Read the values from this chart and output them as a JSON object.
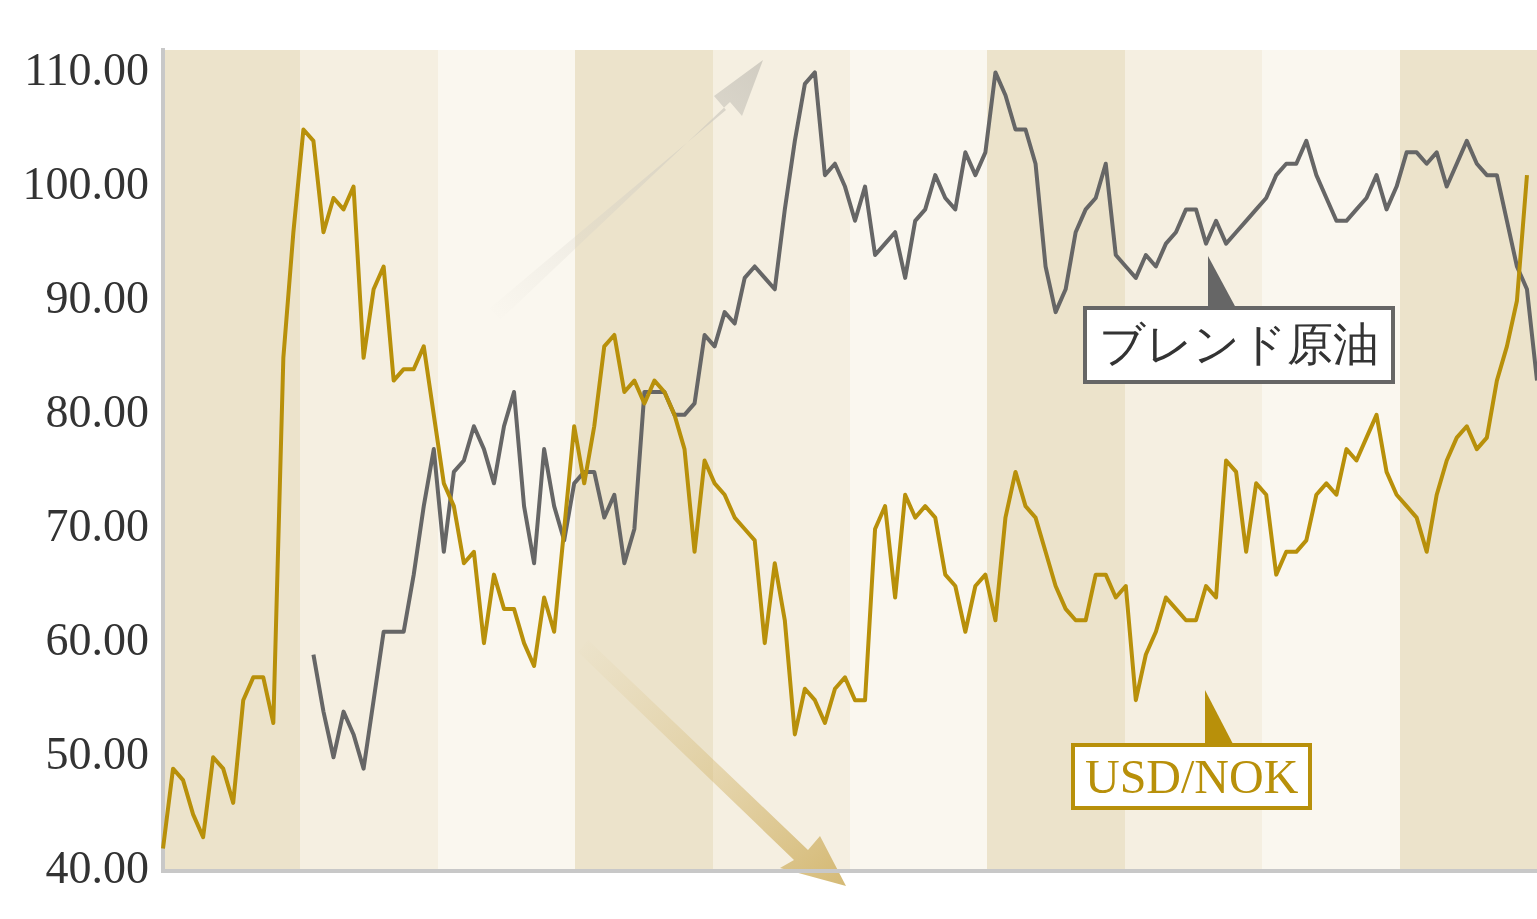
{
  "chart_data": {
    "type": "line",
    "categories": [
      null,
      null,
      null,
      null,
      null,
      null,
      null,
      null,
      null,
      null,
      null,
      null,
      null,
      null,
      null,
      null,
      null,
      null,
      null,
      null,
      null,
      null,
      null,
      null,
      null,
      null,
      null,
      null,
      null,
      null,
      null,
      null,
      null,
      null,
      null,
      null,
      null,
      null,
      null,
      null,
      null,
      null,
      null,
      null,
      null,
      null,
      null,
      null,
      null,
      null,
      null,
      null,
      null,
      null,
      null,
      null,
      null,
      null,
      null,
      null,
      null,
      null,
      null,
      null,
      null,
      null,
      null,
      null,
      null,
      null,
      null,
      null,
      null,
      null,
      null,
      null,
      null,
      null,
      null,
      null,
      null,
      null,
      null,
      null,
      null,
      null,
      null,
      null,
      null,
      null,
      null,
      null,
      null,
      null,
      null,
      null,
      null,
      null,
      null,
      null,
      null,
      null,
      null,
      null,
      null,
      null,
      null,
      null,
      null,
      null,
      null,
      null,
      null,
      null,
      null,
      null,
      null,
      null,
      null,
      null,
      null,
      null,
      null,
      null,
      null,
      null,
      null,
      null,
      null,
      null,
      null,
      null,
      null,
      null,
      null,
      null,
      null,
      null
    ],
    "series": [
      {
        "name": "USD/NOK",
        "color": "#b8900a",
        "values": [
          42,
          49,
          48,
          45,
          43,
          50,
          49,
          46,
          55,
          57,
          57,
          53,
          85,
          96,
          105,
          104,
          96,
          99,
          98,
          100,
          85,
          91,
          93,
          83,
          84,
          84,
          86,
          80,
          74,
          72,
          67,
          68,
          60,
          66,
          63,
          63,
          60,
          58,
          64,
          61,
          70,
          79,
          74,
          79,
          86,
          87,
          82,
          83,
          81,
          83,
          82,
          80,
          77,
          68,
          76,
          74,
          73,
          71,
          70,
          69,
          60,
          67,
          62,
          52,
          56,
          55,
          53,
          56,
          57,
          55,
          55,
          70,
          72,
          64,
          73,
          71,
          72,
          71,
          66,
          65,
          61,
          65,
          66,
          62,
          71,
          75,
          72,
          71,
          68,
          65,
          63,
          62,
          62,
          66,
          66,
          64,
          65,
          55,
          59,
          61,
          64,
          63,
          62,
          62,
          65,
          64,
          76,
          75,
          68,
          74,
          73,
          66,
          68,
          68,
          69,
          73,
          74,
          73,
          77,
          76,
          78,
          80,
          75,
          73,
          72,
          71,
          68,
          73,
          76,
          78,
          79,
          77,
          78,
          83,
          86,
          90,
          101,
          null
        ]
      },
      {
        "name": "ブレンド原油",
        "color": "#666666",
        "values": [
          null,
          null,
          null,
          null,
          null,
          null,
          null,
          null,
          null,
          null,
          null,
          null,
          null,
          null,
          null,
          59,
          54,
          50,
          54,
          52,
          49,
          55,
          61,
          61,
          61,
          66,
          72,
          77,
          68,
          75,
          76,
          79,
          77,
          74,
          79,
          82,
          72,
          67,
          77,
          72,
          69,
          74,
          75,
          75,
          71,
          73,
          67,
          70,
          82,
          82,
          82,
          80,
          80,
          81,
          87,
          86,
          89,
          88,
          92,
          93,
          92,
          91,
          98,
          104,
          109,
          110,
          101,
          102,
          100,
          97,
          100,
          94,
          95,
          96,
          92,
          97,
          98,
          101,
          99,
          98,
          103,
          101,
          103,
          110,
          108,
          105,
          105,
          102,
          93,
          89,
          91,
          96,
          98,
          99,
          102,
          94,
          93,
          92,
          94,
          93,
          95,
          96,
          98,
          98,
          95,
          97,
          95,
          96,
          97,
          98,
          99,
          101,
          102,
          102,
          104,
          101,
          99,
          97,
          97,
          98,
          99,
          101,
          98,
          100,
          103,
          103,
          102,
          103,
          100,
          102,
          104,
          102,
          101,
          101,
          97,
          93,
          91,
          83
        ]
      }
    ],
    "ylim": [
      40,
      112
    ],
    "yticks": [
      {
        "value": 40,
        "label": "40.00"
      },
      {
        "value": 50,
        "label": "50.00"
      },
      {
        "value": 60,
        "label": "60.00"
      },
      {
        "value": 70,
        "label": "70.00"
      },
      {
        "value": 80,
        "label": "80.00"
      },
      {
        "value": 90,
        "label": "90.00"
      },
      {
        "value": 100,
        "label": "100.00"
      },
      {
        "value": 110,
        "label": "110.00"
      }
    ],
    "tick_labels": "y",
    "grid": false,
    "legend": "right",
    "marker": "none",
    "line_style": "solid"
  }
}
